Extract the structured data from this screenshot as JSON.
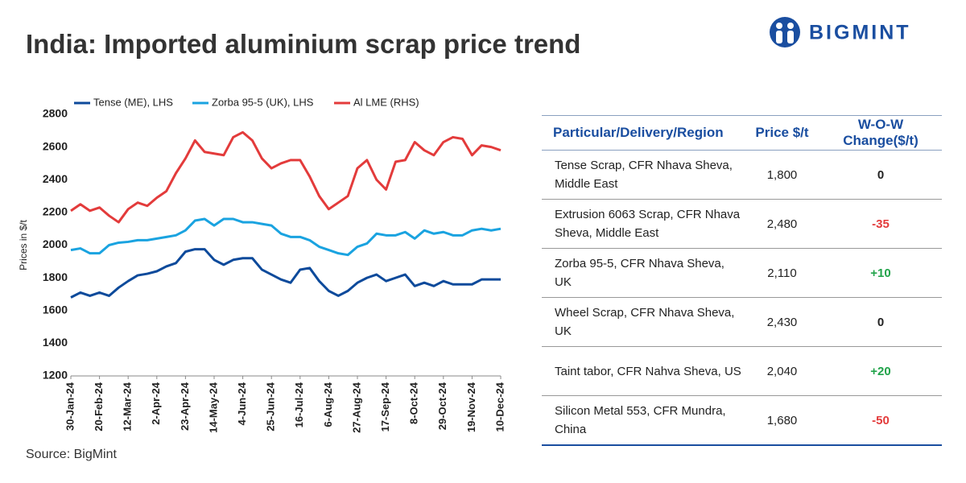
{
  "logo": "BIGMINT",
  "source": "Source: BigMint",
  "chart_data": {
    "type": "line",
    "title": "India: Imported aluminium scrap price trend",
    "y_axis_label": "Prices in $/t",
    "legend": "top",
    "ylim": [
      1200,
      2800
    ],
    "yticks": [
      1200,
      1400,
      1600,
      1800,
      2000,
      2200,
      2400,
      2600,
      2800
    ],
    "categories": [
      "30-Jan-24",
      null,
      null,
      "20-Feb-24",
      null,
      null,
      "12-Mar-24",
      null,
      null,
      "2-Apr-24",
      null,
      null,
      "23-Apr-24",
      null,
      null,
      "14-May-24",
      null,
      null,
      "4-Jun-24",
      null,
      null,
      "25-Jun-24",
      null,
      null,
      "16-Jul-24",
      null,
      null,
      "6-Aug-24",
      null,
      null,
      "27-Aug-24",
      null,
      null,
      "17-Sep-24",
      null,
      null,
      "8-Oct-24",
      null,
      null,
      "29-Oct-24",
      null,
      null,
      "19-Nov-24",
      null,
      null,
      "10-Dec-24"
    ],
    "series": [
      {
        "name": "Tense (ME), LHS",
        "color": "#0d4a9b",
        "values": [
          1680,
          1710,
          1690,
          1710,
          1690,
          1740,
          1780,
          1815,
          1825,
          1840,
          1870,
          1890,
          1960,
          1975,
          1975,
          1910,
          1880,
          1910,
          1920,
          1920,
          1850,
          1820,
          1790,
          1770,
          1850,
          1860,
          1780,
          1720,
          1690,
          1720,
          1770,
          1800,
          1820,
          1780,
          1800,
          1820,
          1750,
          1770,
          1750,
          1780,
          1760,
          1760,
          1760,
          1790,
          1790,
          1790
        ]
      },
      {
        "name": "Zorba 95-5 (UK), LHS",
        "color": "#1aa3e0",
        "values": [
          1970,
          1980,
          1950,
          1950,
          2000,
          2015,
          2020,
          2030,
          2030,
          2040,
          2050,
          2060,
          2090,
          2150,
          2160,
          2120,
          2160,
          2160,
          2140,
          2140,
          2130,
          2120,
          2070,
          2050,
          2050,
          2030,
          1990,
          1970,
          1950,
          1940,
          1990,
          2010,
          2070,
          2060,
          2060,
          2080,
          2040,
          2090,
          2070,
          2080,
          2060,
          2060,
          2090,
          2100,
          2090,
          2100
        ]
      },
      {
        "name": "Al LME (RHS)",
        "color": "#e33b3b",
        "values": [
          2210,
          2250,
          2210,
          2230,
          2180,
          2140,
          2220,
          2260,
          2240,
          2290,
          2330,
          2440,
          2530,
          2640,
          2570,
          2560,
          2550,
          2660,
          2690,
          2640,
          2530,
          2470,
          2500,
          2520,
          2520,
          2420,
          2300,
          2220,
          2260,
          2300,
          2470,
          2520,
          2400,
          2340,
          2510,
          2520,
          2630,
          2580,
          2550,
          2630,
          2660,
          2650,
          2550,
          2610,
          2600,
          2580
        ]
      }
    ]
  },
  "table": {
    "header": [
      "Particular/Delivery/Region",
      "Price $/t",
      "W-O-W Change($/t)"
    ],
    "rows": [
      [
        "Tense Scrap, CFR Nhava Sheva, Middle East",
        "1,800",
        "0"
      ],
      [
        "Extrusion 6063 Scrap, CFR Nhava Sheva, Middle East",
        "2,480",
        "-35"
      ],
      [
        "Zorba 95-5, CFR Nhava Sheva, UK",
        "2,110",
        "+10"
      ],
      [
        "Wheel Scrap, CFR Nhava Sheva, UK",
        "2,430",
        "0"
      ],
      [
        "Taint tabor, CFR Nahva Sheva, US",
        "2,040",
        "+20"
      ],
      [
        "Silicon Metal 553, CFR Mundra, China",
        "1,680",
        "-50"
      ]
    ]
  }
}
